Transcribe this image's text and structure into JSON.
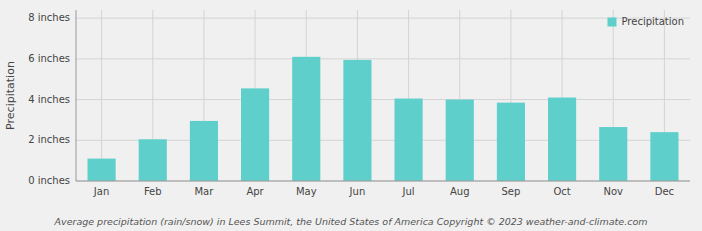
{
  "chart_data": {
    "type": "bar",
    "categories": [
      "Jan",
      "Feb",
      "Mar",
      "Apr",
      "May",
      "Jun",
      "Jul",
      "Aug",
      "Sep",
      "Oct",
      "Nov",
      "Dec"
    ],
    "series": [
      {
        "name": "Precipitation",
        "color": "#5ECFCA",
        "values": [
          1.1,
          2.05,
          2.95,
          4.55,
          6.1,
          5.95,
          4.05,
          4.0,
          3.85,
          4.1,
          2.65,
          2.4
        ]
      }
    ],
    "ylabel": "Precipitation",
    "ylim": [
      0,
      8.4
    ],
    "yticks": [
      {
        "value": 0,
        "label": "0 inches"
      },
      {
        "value": 2,
        "label": "2 inches"
      },
      {
        "value": 4,
        "label": "4 inches"
      },
      {
        "value": 6,
        "label": "6 inches"
      },
      {
        "value": 8,
        "label": "8 inches"
      }
    ],
    "grid": true,
    "legend": "top-right",
    "annotations": [
      "Average precipitation (rain/snow) in Lees Summit, the United States of America   Copyright © 2023  weather-and-climate.com"
    ]
  }
}
